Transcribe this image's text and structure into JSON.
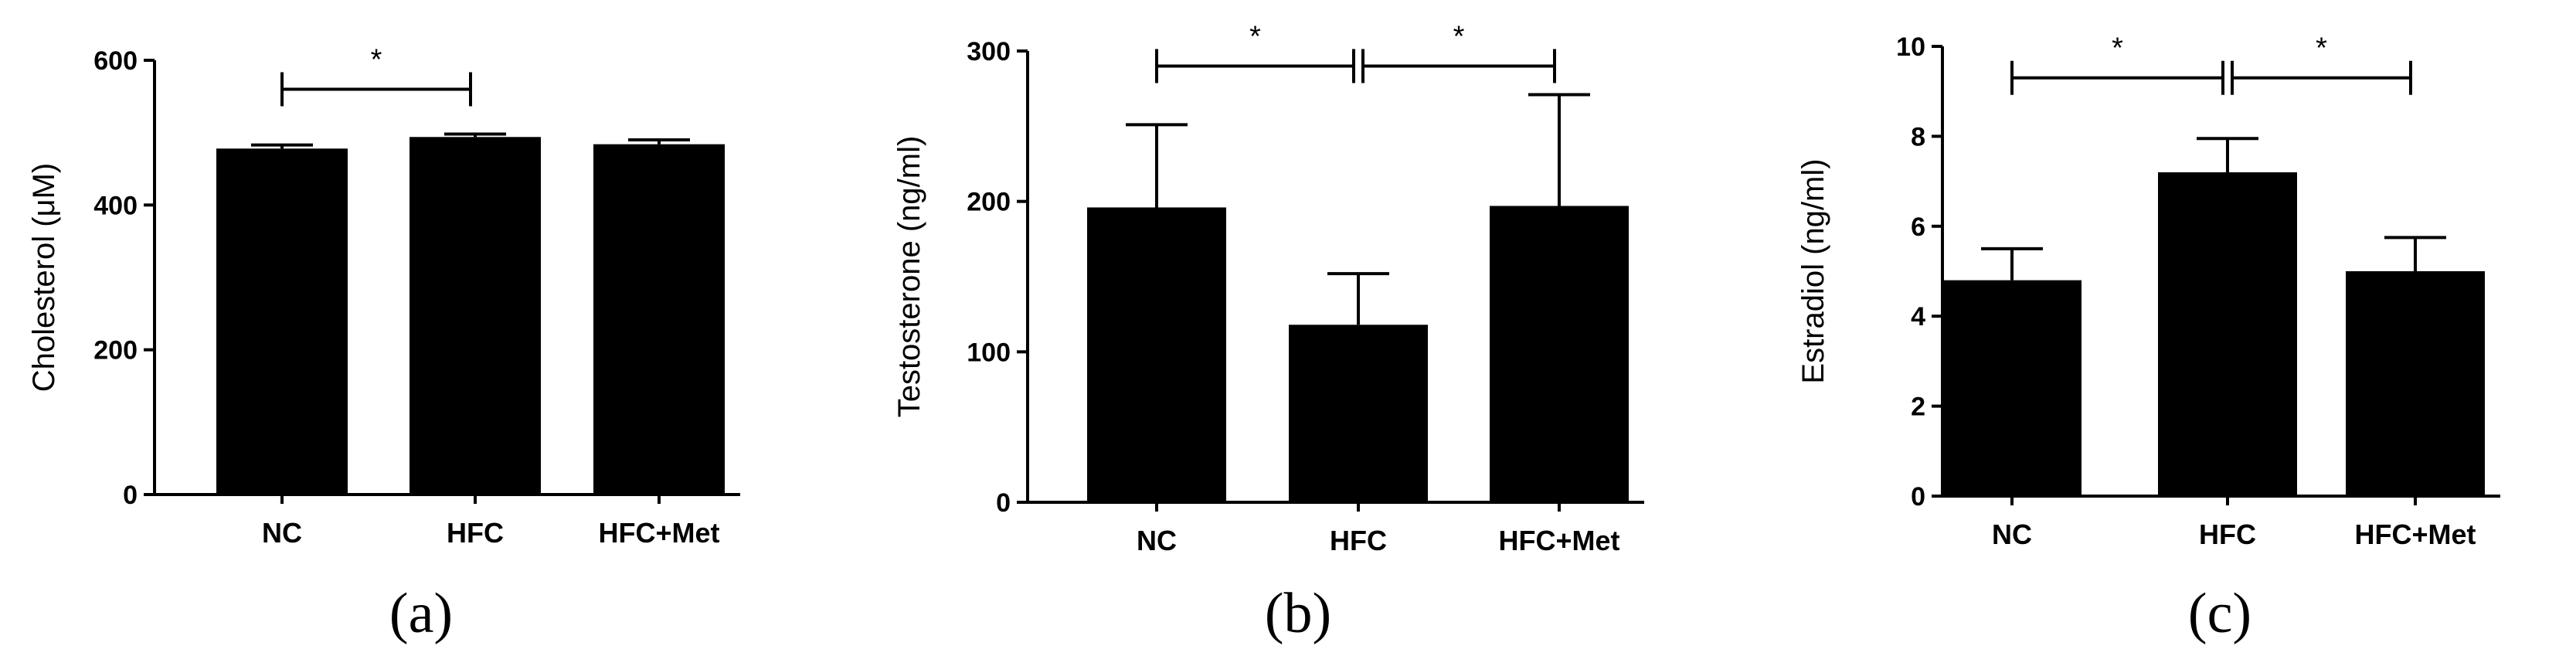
{
  "chart_data": [
    {
      "type": "bar",
      "panel_label": "(a)",
      "ylabel": "Cholesterol (μM)",
      "categories": [
        "NC",
        "HFC",
        "HFC+Met"
      ],
      "values": [
        478,
        494,
        484
      ],
      "errors": [
        5,
        4,
        6
      ],
      "ylim": [
        0,
        600
      ],
      "yticks": [
        0,
        200,
        400,
        600
      ],
      "significance": [
        {
          "from": 0,
          "to": 1,
          "label": "*",
          "y": 560
        }
      ]
    },
    {
      "type": "bar",
      "panel_label": "(b)",
      "ylabel": "Testosterone (ng/ml)",
      "categories": [
        "NC",
        "HFC",
        "HFC+Met"
      ],
      "values": [
        196,
        118,
        197
      ],
      "errors": [
        55,
        34,
        74
      ],
      "ylim": [
        0,
        300
      ],
      "yticks": [
        0,
        100,
        200,
        300
      ],
      "significance": [
        {
          "from": 0,
          "to": 1,
          "label": "*",
          "y": 290
        },
        {
          "from": 1,
          "to": 2,
          "label": "*",
          "y": 290
        }
      ]
    },
    {
      "type": "bar",
      "panel_label": "(c)",
      "ylabel": "Estradiol (ng/ml)",
      "categories": [
        "NC",
        "HFC",
        "HFC+Met"
      ],
      "values": [
        4.8,
        7.2,
        5.0
      ],
      "errors": [
        0.7,
        0.75,
        0.75
      ],
      "ylim": [
        0,
        10
      ],
      "yticks": [
        0,
        2,
        4,
        6,
        8,
        10
      ],
      "significance": [
        {
          "from": 0,
          "to": 1,
          "label": "*",
          "y": 9.3
        },
        {
          "from": 1,
          "to": 2,
          "label": "*",
          "y": 9.3
        }
      ]
    }
  ]
}
